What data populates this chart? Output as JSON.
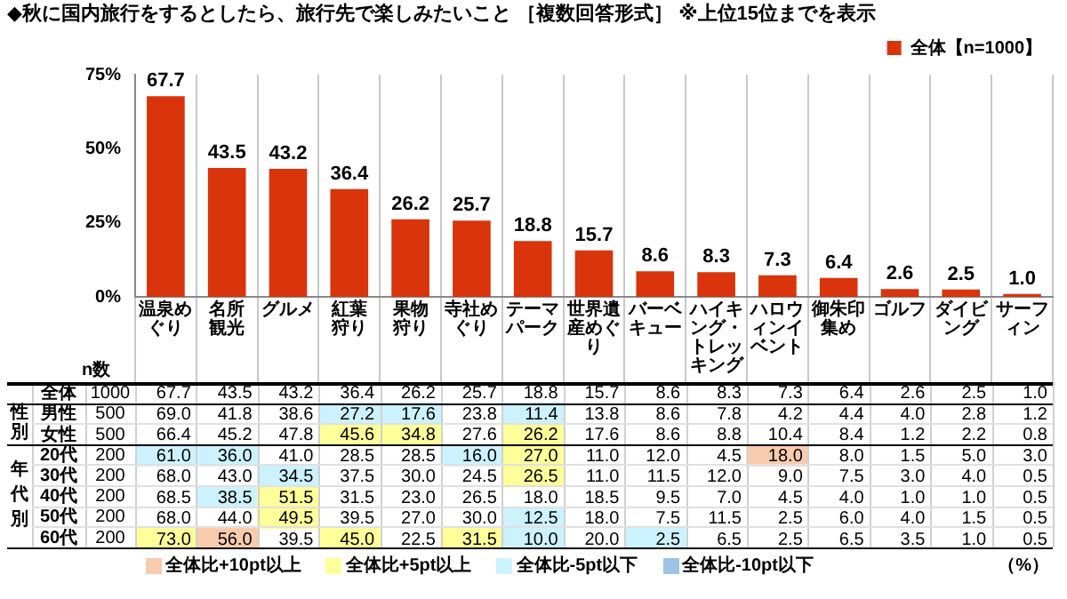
{
  "chart_data": [
    {
      "type": "bar",
      "title": "◆秋に国内旅行をするとしたら、旅行先で楽しみたいこと ［複数回答形式］ ※上位15位までを表示",
      "categories": [
        "温泉めぐり",
        "名所観光",
        "グルメ",
        "紅葉狩り",
        "果物狩り",
        "寺社めぐり",
        "テーマパーク",
        "世界遺産めぐり",
        "バーベキュー",
        "ハイキング・トレッキング",
        "ハロウィンイベント",
        "御朱印集め",
        "ゴルフ",
        "ダイビング",
        "サーフィン"
      ],
      "series": [
        {
          "name": "全体【n=1000】",
          "color": "#d9340b",
          "values": [
            67.7,
            43.5,
            43.2,
            36.4,
            26.2,
            25.7,
            18.8,
            15.7,
            8.6,
            8.3,
            7.3,
            6.4,
            2.6,
            2.5,
            1.0
          ],
          "value_labels": [
            "67.7",
            "43.5",
            "43.2",
            "36.4",
            "26.2",
            "25.7",
            "18.8",
            "15.7",
            "8.6",
            "8.3",
            "7.3",
            "6.4",
            "2.6",
            "2.5",
            "1.0"
          ]
        }
      ],
      "ylim": [
        0,
        75
      ],
      "yticks": [
        {
          "value": 0,
          "label": "0%"
        },
        {
          "value": 25,
          "label": "25%"
        },
        {
          "value": 50,
          "label": "50%"
        },
        {
          "value": 75,
          "label": "75%"
        }
      ],
      "grid": "x",
      "legend": "top right"
    },
    {
      "type": "heatmap",
      "tick_labels": "y",
      "categories": [
        "温泉めぐり",
        "名所観光",
        "グルメ",
        "紅葉狩り",
        "果物狩り",
        "寺社めぐり",
        "テーマパーク",
        "世界遺産めぐり",
        "バーベキュー",
        "ハイキング・トレッキング",
        "ハロウィンイベント",
        "御朱印集め",
        "ゴルフ",
        "ダイビング",
        "サーフィン"
      ],
      "y_categories": [
        "全体",
        "男性",
        "女性",
        "20代",
        "30代",
        "40代",
        "50代",
        "60代"
      ],
      "y2_categories": [
        "1000",
        "500",
        "500",
        "200",
        "200",
        "200",
        "200",
        "200"
      ],
      "cells": [
        [
          67.7,
          43.5,
          43.2,
          36.4,
          26.2,
          25.7,
          18.8,
          15.7,
          8.6,
          8.3,
          7.3,
          6.4,
          2.6,
          2.5,
          1.0
        ],
        [
          69.0,
          41.8,
          38.6,
          27.2,
          17.6,
          23.8,
          11.4,
          13.8,
          8.6,
          7.8,
          4.2,
          4.4,
          4.0,
          2.8,
          1.2
        ],
        [
          66.4,
          45.2,
          47.8,
          45.6,
          34.8,
          27.6,
          26.2,
          17.6,
          8.6,
          8.8,
          10.4,
          8.4,
          1.2,
          2.2,
          0.8
        ],
        [
          61.0,
          36.0,
          41.0,
          28.5,
          28.5,
          16.0,
          27.0,
          11.0,
          12.0,
          4.5,
          18.0,
          8.0,
          1.5,
          5.0,
          3.0
        ],
        [
          68.0,
          43.0,
          34.5,
          37.5,
          30.0,
          24.5,
          26.5,
          11.0,
          11.5,
          12.0,
          9.0,
          7.5,
          3.0,
          4.0,
          0.5
        ],
        [
          68.5,
          38.5,
          51.5,
          31.5,
          23.0,
          26.5,
          18.0,
          18.5,
          9.5,
          7.0,
          4.5,
          4.0,
          1.0,
          1.0,
          0.5
        ],
        [
          68.0,
          44.0,
          49.5,
          39.5,
          27.0,
          30.0,
          12.5,
          18.0,
          7.5,
          11.5,
          2.5,
          6.0,
          4.0,
          1.5,
          0.5
        ],
        [
          73.0,
          56.0,
          39.5,
          45.0,
          22.5,
          31.5,
          10.0,
          20.0,
          2.5,
          6.5,
          2.5,
          6.5,
          3.5,
          1.0,
          0.5
        ]
      ],
      "cell_labels": [
        [
          "67.7",
          "43.5",
          "43.2",
          "36.4",
          "26.2",
          "25.7",
          "18.8",
          "15.7",
          "8.6",
          "8.3",
          "7.3",
          "6.4",
          "2.6",
          "2.5",
          "1.0"
        ],
        [
          "69.0",
          "41.8",
          "38.6",
          "27.2",
          "17.6",
          "23.8",
          "11.4",
          "13.8",
          "8.6",
          "7.8",
          "4.2",
          "4.4",
          "4.0",
          "2.8",
          "1.2"
        ],
        [
          "66.4",
          "45.2",
          "47.8",
          "45.6",
          "34.8",
          "27.6",
          "26.2",
          "17.6",
          "8.6",
          "8.8",
          "10.4",
          "8.4",
          "1.2",
          "2.2",
          "0.8"
        ],
        [
          "61.0",
          "36.0",
          "41.0",
          "28.5",
          "28.5",
          "16.0",
          "27.0",
          "11.0",
          "12.0",
          "4.5",
          "18.0",
          "8.0",
          "1.5",
          "5.0",
          "3.0"
        ],
        [
          "68.0",
          "43.0",
          "34.5",
          "37.5",
          "30.0",
          "24.5",
          "26.5",
          "11.0",
          "11.5",
          "12.0",
          "9.0",
          "7.5",
          "3.0",
          "4.0",
          "0.5"
        ],
        [
          "68.5",
          "38.5",
          "51.5",
          "31.5",
          "23.0",
          "26.5",
          "18.0",
          "18.5",
          "9.5",
          "7.0",
          "4.5",
          "4.0",
          "1.0",
          "1.0",
          "0.5"
        ],
        [
          "68.0",
          "44.0",
          "49.5",
          "39.5",
          "27.0",
          "30.0",
          "12.5",
          "18.0",
          "7.5",
          "11.5",
          "2.5",
          "6.0",
          "4.0",
          "1.5",
          "0.5"
        ],
        [
          "73.0",
          "56.0",
          "39.5",
          "45.0",
          "22.5",
          "31.5",
          "10.0",
          "20.0",
          "2.5",
          "6.5",
          "2.5",
          "6.5",
          "3.5",
          "1.0",
          "0.5"
        ]
      ],
      "colors": [
        [
          null,
          null,
          null,
          null,
          null,
          null,
          null,
          null,
          null,
          null,
          null,
          null,
          null,
          null,
          null
        ],
        [
          null,
          null,
          null,
          "#ccf2ff",
          "#ccf2ff",
          null,
          "#ccf2ff",
          null,
          null,
          null,
          null,
          null,
          null,
          null,
          null
        ],
        [
          null,
          null,
          null,
          "#ffff99",
          "#ffff99",
          null,
          "#ffff99",
          null,
          null,
          null,
          null,
          null,
          null,
          null,
          null
        ],
        [
          "#ccf2ff",
          "#ccf2ff",
          null,
          null,
          null,
          "#ccf2ff",
          "#ffff99",
          null,
          null,
          null,
          "#f8cbad",
          null,
          null,
          null,
          null
        ],
        [
          null,
          null,
          "#ccf2ff",
          null,
          null,
          null,
          "#ffff99",
          null,
          null,
          null,
          null,
          null,
          null,
          null,
          null
        ],
        [
          null,
          "#ccf2ff",
          "#ffff99",
          null,
          null,
          null,
          null,
          null,
          null,
          null,
          null,
          null,
          null,
          null,
          null
        ],
        [
          null,
          null,
          "#ffff99",
          null,
          null,
          null,
          "#ccf2ff",
          null,
          null,
          null,
          null,
          null,
          null,
          null,
          null
        ],
        [
          "#ffff99",
          "#f8cbad",
          null,
          "#ffff99",
          null,
          "#ffff99",
          "#ccf2ff",
          null,
          "#ccf2ff",
          null,
          null,
          null,
          null,
          null,
          null
        ]
      ],
      "annotations": [
        "n数",
        "性別",
        "年代別",
        "全体比+10pt以上",
        "全体比+5pt以上",
        "全体比-5pt以下",
        "全体比-10pt以下",
        "（%）"
      ]
    }
  ]
}
